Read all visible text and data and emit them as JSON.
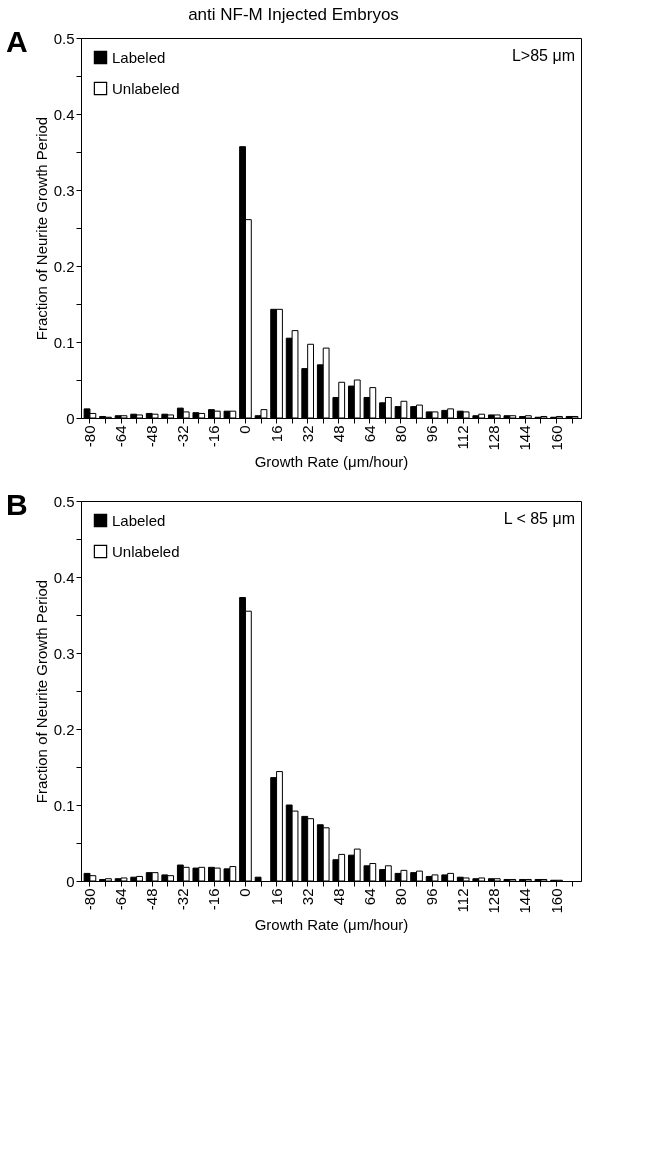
{
  "chart_data": [
    {
      "type": "bar",
      "title": "anti NF-M Injected Embryos",
      "xlabel": "Growth Rate (μm/hour)",
      "ylabel": "Fraction of Neurite Growth Period",
      "categories": [
        "-80",
        null,
        "-64",
        null,
        "-48",
        null,
        "-32",
        null,
        "-16",
        null,
        "0",
        null,
        "16",
        null,
        "32",
        null,
        "48",
        null,
        "64",
        null,
        "80",
        null,
        "96",
        null,
        "112",
        null,
        "128",
        null,
        "144",
        null,
        "160",
        null
      ],
      "series": [
        {
          "name": "Labeled",
          "color": "#000000",
          "values": [
            0.012,
            0.002,
            0.003,
            0.005,
            0.006,
            0.005,
            0.013,
            0.007,
            0.011,
            0.009,
            0.357,
            0.003,
            0.143,
            0.105,
            0.065,
            0.07,
            0.027,
            0.042,
            0.027,
            0.02,
            0.015,
            0.015,
            0.008,
            0.01,
            0.009,
            0.003,
            0.004,
            0.003,
            0.002,
            0.001,
            0.001,
            0.002
          ]
        },
        {
          "name": "Unlabeled",
          "color": "#ffffff",
          "values": [
            0.006,
            0.001,
            0.003,
            0.004,
            0.005,
            0.004,
            0.008,
            0.006,
            0.009,
            0.009,
            0.261,
            0.011,
            0.143,
            0.115,
            0.097,
            0.092,
            0.047,
            0.05,
            0.04,
            0.027,
            0.022,
            0.017,
            0.008,
            0.012,
            0.008,
            0.005,
            0.004,
            0.003,
            0.003,
            0.002,
            0.002,
            0.002
          ]
        }
      ],
      "ylim": [
        0,
        0.5
      ],
      "yticks": [
        0,
        {
          "value": 0.05,
          "label": null
        },
        0.1,
        {
          "value": 0.15,
          "label": null
        },
        0.2,
        {
          "value": 0.25,
          "label": null
        },
        0.3,
        {
          "value": 0.35,
          "label": null
        },
        0.4,
        {
          "value": 0.45,
          "label": null
        },
        0.5
      ],
      "annotations": [
        "A",
        "L>85 μm"
      ],
      "legend": "top left",
      "grid": false
    },
    {
      "type": "bar",
      "xlabel": "Growth Rate (μm/hour)",
      "ylabel": "Fraction of Neurite Growth Period",
      "categories": [
        "-80",
        null,
        "-64",
        null,
        "-48",
        null,
        "-32",
        null,
        "-16",
        null,
        "0",
        null,
        "16",
        null,
        "32",
        null,
        "48",
        null,
        "64",
        null,
        "80",
        null,
        "96",
        null,
        "112",
        null,
        "128",
        null,
        "144",
        null,
        "160",
        null
      ],
      "series": [
        {
          "name": "Labeled",
          "color": "#000000",
          "values": [
            0.01,
            0.002,
            0.003,
            0.005,
            0.011,
            0.008,
            0.021,
            0.017,
            0.018,
            0.016,
            0.373,
            0.005,
            0.136,
            0.1,
            0.085,
            0.074,
            0.028,
            0.034,
            0.02,
            0.015,
            0.01,
            0.011,
            0.006,
            0.008,
            0.005,
            0.003,
            0.003,
            0.002,
            0.002,
            0.002,
            0.001,
            null
          ]
        },
        {
          "name": "Unlabeled",
          "color": "#ffffff",
          "values": [
            0.007,
            0.003,
            0.004,
            0.006,
            0.011,
            0.007,
            0.018,
            0.018,
            0.017,
            0.019,
            0.355,
            null,
            0.144,
            0.092,
            0.082,
            0.07,
            0.035,
            0.042,
            0.023,
            0.02,
            0.014,
            0.013,
            0.008,
            0.01,
            0.004,
            0.004,
            0.003,
            0.002,
            0.002,
            0.002,
            0.001,
            null
          ]
        }
      ],
      "ylim": [
        0,
        0.5
      ],
      "yticks": [
        0,
        {
          "value": 0.05,
          "label": null
        },
        0.1,
        {
          "value": 0.15,
          "label": null
        },
        0.2,
        {
          "value": 0.25,
          "label": null
        },
        0.3,
        {
          "value": 0.35,
          "label": null
        },
        0.4,
        {
          "value": 0.45,
          "label": null
        },
        0.5
      ],
      "annotations": [
        "B",
        "L < 85 μm"
      ],
      "legend": "top left",
      "grid": false
    }
  ]
}
